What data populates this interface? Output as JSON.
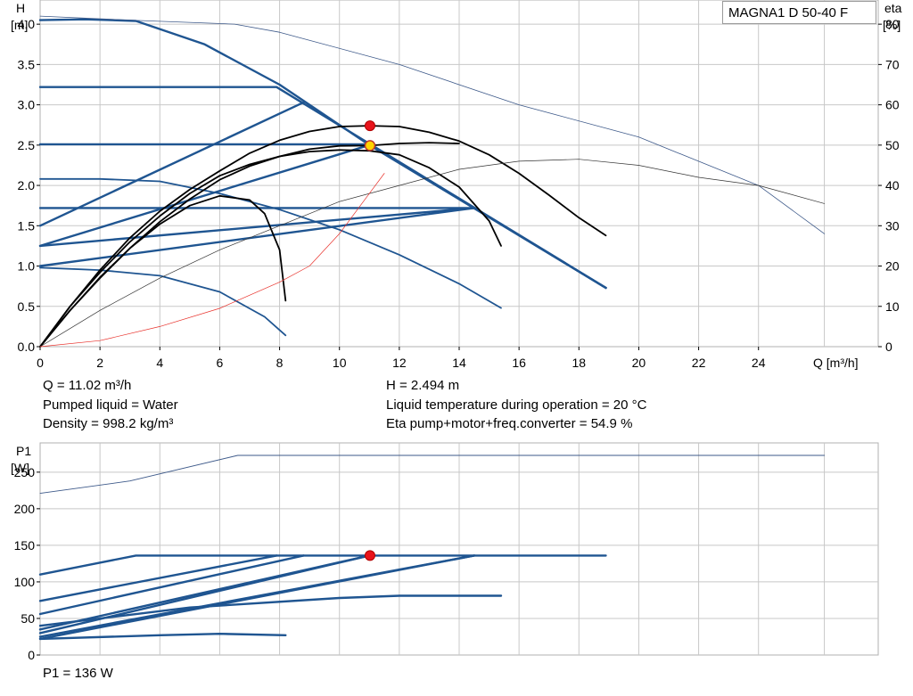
{
  "product_label": "MAGNA1 D 50-40 F",
  "info": {
    "q": "Q = 11.02 m³/h",
    "liquid": "Pumped liquid = Water",
    "density": "Density = 998.2 kg/m³",
    "h": "H = 2.494 m",
    "temperature": "Liquid temperature during operation = 20 °C",
    "eta": "Eta pump+motor+freq.converter = 54.9 %",
    "p1": "P1 = 136 W"
  },
  "chart_data": [
    {
      "type": "line",
      "title": "",
      "xlabel": "Q [m³/h]",
      "ylabel_left": [
        "H",
        "[m]"
      ],
      "ylabel_right": [
        "eta",
        "[%]"
      ],
      "xlim": [
        0,
        28
      ],
      "ylim": [
        0,
        4.3
      ],
      "ylim_right": [
        0,
        86
      ],
      "x_ticks": [
        0,
        2,
        4,
        6,
        8,
        10,
        12,
        14,
        16,
        18,
        20,
        22,
        24
      ],
      "y_ticks": [
        "0.0",
        "0.5",
        "1.0",
        "1.5",
        "2.0",
        "2.5",
        "3.0",
        "3.5",
        "4.0"
      ],
      "y_ticks_right": [
        "0",
        "10",
        "20",
        "30",
        "40",
        "50",
        "60",
        "70",
        "80"
      ],
      "grid": true,
      "operating_point": {
        "Q": 11.02,
        "H": 2.494,
        "H_max_curve": 2.74
      },
      "series": [
        {
          "role": "constant-pressure-curve",
          "points": [
            [
              0,
              3.22
            ],
            [
              7.9,
              3.22
            ],
            [
              18.9,
              0.73
            ]
          ]
        },
        {
          "role": "constant-pressure-curve",
          "points": [
            [
              0,
              2.51
            ],
            [
              11.0,
              2.51
            ],
            [
              18.9,
              0.73
            ]
          ]
        },
        {
          "role": "constant-pressure-curve",
          "points": [
            [
              0,
              1.72
            ],
            [
              14.5,
              1.72
            ],
            [
              18.9,
              0.73
            ]
          ]
        },
        {
          "role": "proportional-pressure-curve",
          "points": [
            [
              0,
              1.5
            ],
            [
              8.8,
              3.03
            ]
          ]
        },
        {
          "role": "proportional-pressure-curve",
          "points": [
            [
              0,
              1.25
            ],
            [
              11.0,
              2.5
            ]
          ]
        },
        {
          "role": "proportional-pressure-curve",
          "points": [
            [
              0,
              1.25
            ],
            [
              14.5,
              1.72
            ]
          ]
        },
        {
          "role": "proportional-pressure-curve",
          "points": [
            [
              0,
              1.0
            ],
            [
              14.5,
              1.72
            ]
          ]
        },
        {
          "role": "max-curve",
          "points": [
            [
              0,
              4.05
            ],
            [
              1.5,
              4.06
            ],
            [
              3.2,
              4.04
            ],
            [
              5.5,
              3.75
            ],
            [
              8.0,
              3.25
            ],
            [
              11.0,
              2.5
            ],
            [
              18.9,
              0.73
            ]
          ]
        },
        {
          "role": "speed-curve",
          "points": [
            [
              0,
              2.08
            ],
            [
              2,
              2.08
            ],
            [
              4,
              2.05
            ],
            [
              6,
              1.9
            ],
            [
              8,
              1.7
            ],
            [
              10,
              1.45
            ],
            [
              12,
              1.14
            ],
            [
              14,
              0.78
            ],
            [
              15.4,
              0.48
            ]
          ]
        },
        {
          "role": "speed-curve",
          "points": [
            [
              0,
              0.98
            ],
            [
              2,
              0.95
            ],
            [
              4,
              0.88
            ],
            [
              6,
              0.68
            ],
            [
              7.5,
              0.37
            ],
            [
              8.2,
              0.14
            ]
          ]
        },
        {
          "role": "system-curve",
          "points": [
            [
              0,
              0
            ],
            [
              1,
              0.5
            ],
            [
              2,
              0.92
            ],
            [
              3,
              1.3
            ],
            [
              4,
              1.62
            ],
            [
              5,
              1.9
            ],
            [
              6,
              2.12
            ],
            [
              7,
              2.26
            ],
            [
              8,
              2.36
            ],
            [
              9,
              2.45
            ],
            [
              10,
              2.49
            ],
            [
              11,
              2.494
            ],
            [
              12,
              2.52
            ],
            [
              13,
              2.53
            ],
            [
              14,
              2.52
            ]
          ]
        },
        {
          "role": "system-curve",
          "points": [
            [
              0,
              0
            ],
            [
              1,
              0.5
            ],
            [
              2,
              0.95
            ],
            [
              3,
              1.35
            ],
            [
              4,
              1.68
            ],
            [
              5,
              1.95
            ],
            [
              6,
              2.18
            ],
            [
              7,
              2.4
            ],
            [
              8,
              2.56
            ],
            [
              9,
              2.67
            ],
            [
              10,
              2.73
            ],
            [
              11,
              2.74
            ],
            [
              12,
              2.73
            ],
            [
              13,
              2.66
            ],
            [
              14,
              2.55
            ],
            [
              15,
              2.38
            ],
            [
              16,
              2.15
            ],
            [
              17,
              1.88
            ],
            [
              18,
              1.6
            ],
            [
              18.9,
              1.38
            ]
          ]
        },
        {
          "role": "system-curve",
          "points": [
            [
              0,
              0
            ],
            [
              1,
              0.45
            ],
            [
              2,
              0.85
            ],
            [
              3,
              1.22
            ],
            [
              4,
              1.55
            ],
            [
              5,
              1.83
            ],
            [
              6,
              2.07
            ],
            [
              7,
              2.24
            ],
            [
              8,
              2.36
            ],
            [
              9,
              2.42
            ],
            [
              10,
              2.44
            ],
            [
              11,
              2.43
            ],
            [
              12,
              2.38
            ],
            [
              13,
              2.22
            ],
            [
              14,
              1.98
            ],
            [
              15,
              1.56
            ],
            [
              15.4,
              1.25
            ]
          ]
        },
        {
          "role": "system-curve",
          "points": [
            [
              0,
              0
            ],
            [
              1,
              0.45
            ],
            [
              2,
              0.86
            ],
            [
              3,
              1.22
            ],
            [
              4,
              1.52
            ],
            [
              5,
              1.75
            ],
            [
              6,
              1.87
            ],
            [
              7,
              1.82
            ],
            [
              7.5,
              1.65
            ],
            [
              8,
              1.2
            ],
            [
              8.2,
              0.57
            ]
          ]
        },
        {
          "role": "efficiency-max",
          "points": [
            [
              0,
              82
            ],
            [
              3,
              81
            ],
            [
              6.5,
              80
            ],
            [
              8,
              78
            ],
            [
              12,
              70
            ],
            [
              16,
              60
            ],
            [
              20,
              52
            ],
            [
              24,
              40
            ],
            [
              26.2,
              28
            ]
          ]
        },
        {
          "role": "efficiency-mid",
          "points": [
            [
              0,
              0
            ],
            [
              2,
              9
            ],
            [
              4,
              17
            ],
            [
              6,
              24
            ],
            [
              8,
              30
            ],
            [
              10,
              36
            ],
            [
              12,
              40
            ],
            [
              14,
              44
            ],
            [
              16,
              46
            ],
            [
              18,
              46.5
            ],
            [
              20,
              45
            ],
            [
              22,
              42
            ],
            [
              24,
              40
            ],
            [
              26.2,
              35.5
            ]
          ]
        },
        {
          "role": "efficiency-duty",
          "points": [
            [
              0,
              0
            ],
            [
              2,
              1.5
            ],
            [
              4,
              5
            ],
            [
              6,
              9.5
            ],
            [
              8,
              16
            ],
            [
              9,
              20
            ],
            [
              10,
              28
            ],
            [
              11,
              38
            ],
            [
              11.5,
              43
            ]
          ]
        }
      ]
    },
    {
      "type": "line",
      "title": "",
      "xlabel": "",
      "ylabel_left": [
        "P1",
        "[W]"
      ],
      "xlim": [
        0,
        28
      ],
      "ylim": [
        0,
        290
      ],
      "y_ticks": [
        "0",
        "50",
        "100",
        "150",
        "200",
        "250"
      ],
      "grid": true,
      "operating_point": {
        "Q": 11.02,
        "P1": 136
      },
      "series": [
        {
          "role": "power-max",
          "points": [
            [
              0,
              221
            ],
            [
              3,
              238
            ],
            [
              6.6,
              273
            ],
            [
              26.2,
              273
            ]
          ]
        },
        {
          "role": "power-curve",
          "points": [
            [
              0,
              110
            ],
            [
              3.2,
              136
            ],
            [
              18.9,
              136
            ]
          ]
        },
        {
          "role": "power-curve",
          "points": [
            [
              0,
              74
            ],
            [
              7.9,
              136
            ]
          ]
        },
        {
          "role": "power-curve",
          "points": [
            [
              0,
              56
            ],
            [
              8.8,
              136
            ]
          ]
        },
        {
          "role": "power-curve",
          "points": [
            [
              0,
              35
            ],
            [
              11.0,
              136
            ]
          ]
        },
        {
          "role": "power-curve",
          "points": [
            [
              0,
              30
            ],
            [
              11.0,
              136
            ]
          ]
        },
        {
          "role": "power-curve",
          "points": [
            [
              0,
              25
            ],
            [
              14.5,
              136
            ]
          ]
        },
        {
          "role": "power-curve",
          "points": [
            [
              0,
              22
            ],
            [
              14.5,
              136
            ]
          ]
        },
        {
          "role": "power-curve",
          "points": [
            [
              0,
              40
            ],
            [
              5,
              65
            ],
            [
              10,
              78
            ],
            [
              12,
              81
            ],
            [
              15.4,
              81
            ]
          ]
        },
        {
          "role": "power-curve",
          "points": [
            [
              0,
              22
            ],
            [
              4,
              27
            ],
            [
              6,
              29
            ],
            [
              8.2,
              27
            ]
          ]
        }
      ]
    }
  ]
}
